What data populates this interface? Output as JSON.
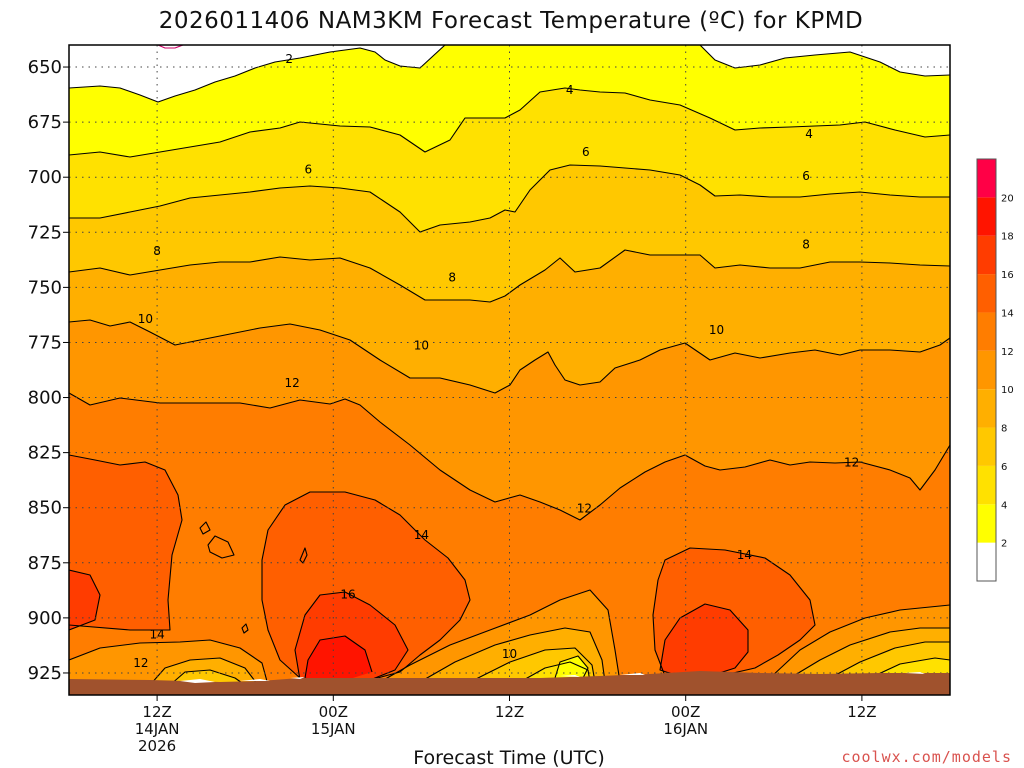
{
  "chart_data": {
    "type": "contour",
    "title": "2026011406 NAM3KM Forecast Temperature (ºC) for KPMD",
    "xlabel": "Forecast Time (UTC)",
    "ylabel": "",
    "source": "coolwx.com/models",
    "x_range_hours": [
      0,
      60
    ],
    "ylim": [
      640,
      935
    ],
    "y_ticks": [
      650,
      675,
      700,
      725,
      750,
      775,
      800,
      825,
      850,
      875,
      900,
      925
    ],
    "x_ticks": [
      {
        "hour": 6,
        "l1": "12Z",
        "l2": "14JAN",
        "l3": "2026"
      },
      {
        "hour": 18,
        "l1": "00Z",
        "l2": "15JAN",
        "l3": ""
      },
      {
        "hour": 30,
        "l1": "12Z",
        "l2": "",
        "l3": ""
      },
      {
        "hour": 42,
        "l1": "00Z",
        "l2": "16JAN",
        "l3": ""
      },
      {
        "hour": 54,
        "l1": "12Z",
        "l2": "",
        "l3": ""
      }
    ],
    "colorbar": {
      "labels": [
        "2",
        "4",
        "6",
        "8",
        "10",
        "12",
        "14",
        "16",
        "18",
        "20"
      ],
      "bins": [
        {
          "low": 0,
          "high": 2,
          "color": "#ffffff"
        },
        {
          "low": 2,
          "high": 4,
          "color": "#ffff00"
        },
        {
          "low": 4,
          "high": 6,
          "color": "#ffe100"
        },
        {
          "low": 6,
          "high": 8,
          "color": "#ffc800"
        },
        {
          "low": 8,
          "high": 10,
          "color": "#ffaf00"
        },
        {
          "low": 10,
          "high": 12,
          "color": "#ff9600"
        },
        {
          "low": 12,
          "high": 14,
          "color": "#ff7d00"
        },
        {
          "low": 14,
          "high": 16,
          "color": "#ff5f00"
        },
        {
          "low": 16,
          "high": 18,
          "color": "#ff3c00"
        },
        {
          "low": 18,
          "high": 20,
          "color": "#ff1400"
        },
        {
          "low": 20,
          "high": 22,
          "color": "#ff0046"
        }
      ]
    },
    "isotherm_labels": [
      {
        "text": "2",
        "hour": 15.0,
        "p": 646
      },
      {
        "text": "4",
        "hour": 34.1,
        "p": 660
      },
      {
        "text": "4",
        "hour": 50.4,
        "p": 680
      },
      {
        "text": "6",
        "hour": 16.3,
        "p": 696
      },
      {
        "text": "6",
        "hour": 35.2,
        "p": 688
      },
      {
        "text": "6",
        "hour": 50.2,
        "p": 699
      },
      {
        "text": "8",
        "hour": 6.0,
        "p": 733
      },
      {
        "text": "8",
        "hour": 26.1,
        "p": 745
      },
      {
        "text": "8",
        "hour": 50.2,
        "p": 730
      },
      {
        "text": "10",
        "hour": 5.2,
        "p": 764
      },
      {
        "text": "10",
        "hour": 24.0,
        "p": 776
      },
      {
        "text": "10",
        "hour": 44.1,
        "p": 769
      },
      {
        "text": "10",
        "hour": 30.0,
        "p": 916
      },
      {
        "text": "12",
        "hour": 15.2,
        "p": 793
      },
      {
        "text": "12",
        "hour": 35.1,
        "p": 850
      },
      {
        "text": "12",
        "hour": 53.3,
        "p": 829
      },
      {
        "text": "12",
        "hour": 4.9,
        "p": 920
      },
      {
        "text": "14",
        "hour": 24.0,
        "p": 862
      },
      {
        "text": "14",
        "hour": 46.0,
        "p": 871
      },
      {
        "text": "14",
        "hour": 6.0,
        "p": 907
      },
      {
        "text": "16",
        "hour": 19.0,
        "p": 889
      }
    ]
  }
}
